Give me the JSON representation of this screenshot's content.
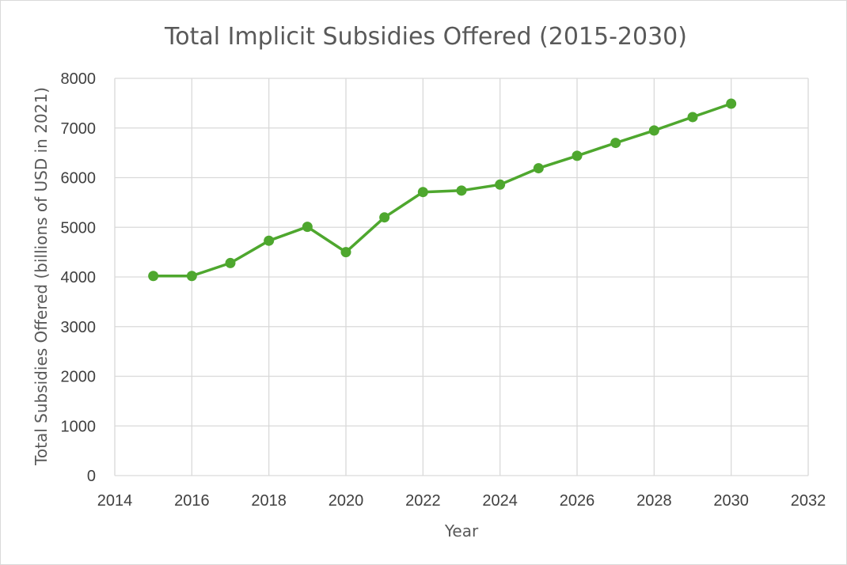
{
  "chart_data": {
    "type": "scatter",
    "title": "Total Implicit Subsidies Offered (2015-2030)",
    "xlabel": "Year",
    "ylabel": "Total Subsidies Offered (billions of USD in 2021)",
    "xlim": [
      2014,
      2032
    ],
    "ylim": [
      0,
      8000
    ],
    "xticks": [
      2014,
      2016,
      2018,
      2020,
      2022,
      2024,
      2026,
      2028,
      2030,
      2032
    ],
    "yticks": [
      0,
      1000,
      2000,
      3000,
      4000,
      5000,
      6000,
      7000,
      8000
    ],
    "grid": true,
    "legend": "none",
    "series": [
      {
        "color": "#4ea72e",
        "style": "line-with-markers",
        "x": [
          2015,
          2016,
          2017,
          2018,
          2019,
          2020,
          2021,
          2022,
          2023,
          2024,
          2025,
          2026,
          2027,
          2028,
          2029,
          2030
        ],
        "y": [
          4020,
          4020,
          4280,
          4730,
          5010,
          4500,
          5200,
          5710,
          5740,
          5860,
          6190,
          6440,
          6700,
          6950,
          7220,
          7490
        ]
      }
    ]
  }
}
